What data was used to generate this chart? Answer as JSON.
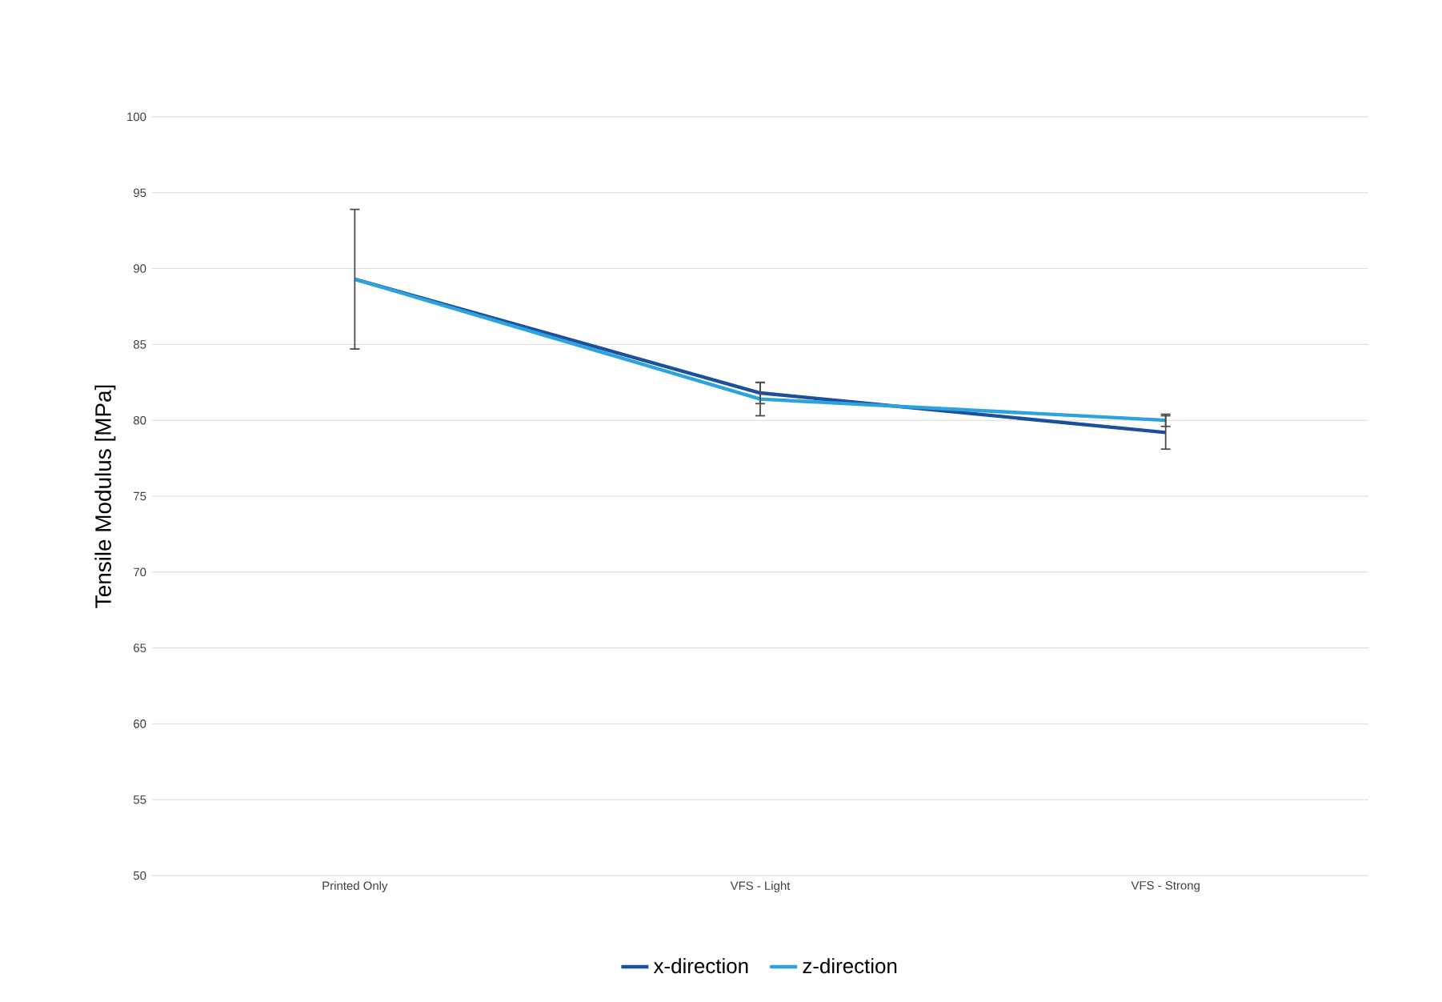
{
  "chart_data": {
    "type": "line",
    "ylabel": "Tensile Modulus [MPa]",
    "categories": [
      "Printed Only",
      "VFS - Light",
      "VFS - Strong"
    ],
    "series": [
      {
        "name": "x-direction",
        "color": "#1c4f9c",
        "values": [
          89.3,
          81.8,
          79.2
        ],
        "errors": [
          4.6,
          0.7,
          1.1
        ]
      },
      {
        "name": "z-direction",
        "color": "#2ca3dc",
        "values": [
          89.3,
          81.4,
          80.0
        ],
        "errors": [
          null,
          1.1,
          0.4
        ]
      }
    ],
    "ylim": [
      50,
      100
    ],
    "yticks": [
      50,
      55,
      60,
      65,
      70,
      75,
      80,
      85,
      90,
      95,
      100
    ],
    "grid": "y",
    "legend": "bottom",
    "marker": "none",
    "line_style": "solid"
  }
}
